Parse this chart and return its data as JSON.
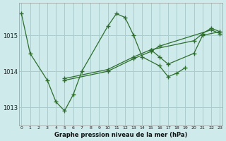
{
  "title": "Graphe pression niveau de la mer (hPa)",
  "bg_color": "#ceeaea",
  "grid_color": "#aacccc",
  "line_color": "#2d6e2d",
  "ylim": [
    1012.5,
    1015.9
  ],
  "yticks": [
    1013,
    1014,
    1015
  ],
  "xlim": [
    -0.3,
    23.3
  ],
  "xticks": [
    0,
    1,
    2,
    3,
    4,
    5,
    6,
    7,
    8,
    9,
    10,
    11,
    12,
    13,
    14,
    15,
    16,
    17,
    18,
    19,
    20,
    21,
    22,
    23
  ],
  "series": [
    [
      0,
      1015.6
    ],
    [
      1,
      1014.5
    ],
    [
      3,
      1013.75
    ],
    [
      4,
      1013.15
    ],
    [
      5,
      1012.9
    ],
    [
      6,
      1013.35
    ],
    [
      7,
      1014.0
    ],
    [
      10,
      1015.25
    ],
    [
      11,
      1015.6
    ],
    [
      12,
      1015.5
    ],
    [
      13,
      1015.0
    ],
    [
      14,
      1014.4
    ],
    [
      16,
      1014.15
    ],
    [
      17,
      1013.85
    ],
    [
      18,
      1013.95
    ],
    [
      19,
      1014.1
    ]
  ],
  "line2": [
    [
      5,
      1013.8
    ],
    [
      10,
      1014.05
    ],
    [
      13,
      1014.4
    ],
    [
      15,
      1014.6
    ],
    [
      20,
      1014.85
    ],
    [
      21,
      1015.05
    ],
    [
      22,
      1015.2
    ],
    [
      23,
      1015.1
    ]
  ],
  "line3": [
    [
      5,
      1013.75
    ],
    [
      10,
      1014.0
    ],
    [
      13,
      1014.35
    ],
    [
      15,
      1014.55
    ],
    [
      16,
      1014.7
    ],
    [
      22,
      1015.15
    ],
    [
      23,
      1015.05
    ]
  ],
  "line4": [
    [
      15,
      1014.6
    ],
    [
      16,
      1014.4
    ],
    [
      17,
      1014.2
    ],
    [
      20,
      1014.5
    ],
    [
      21,
      1015.0
    ],
    [
      23,
      1015.1
    ]
  ]
}
